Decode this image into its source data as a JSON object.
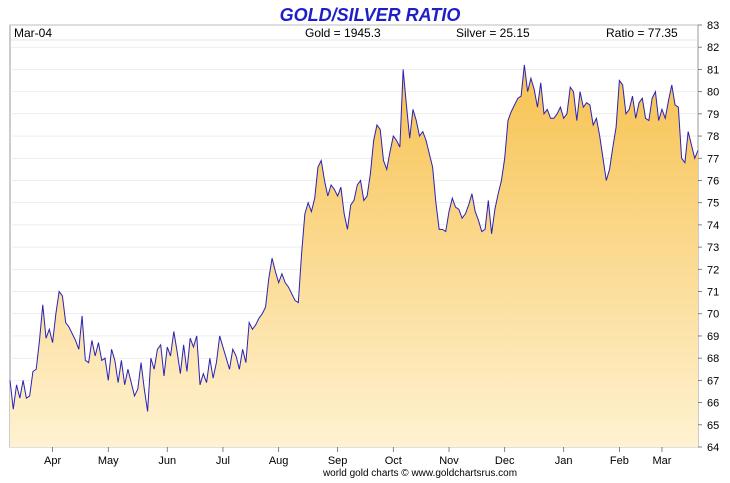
{
  "header": {
    "date": "Mar-04",
    "gold": "Gold = 1945.3",
    "silver": "Silver = 25.15",
    "ratio": "Ratio = 77.35"
  },
  "footer": {
    "credit": "world gold charts © www.goldchartsrus.com"
  },
  "colors": {
    "line": "#2a22b8",
    "fill_top": "#f7c250",
    "fill_bottom": "#fff2d2",
    "title": "#1f1fc8"
  },
  "chart_data": {
    "type": "area",
    "title": "GOLD/SILVER RATIO",
    "xlabel": "",
    "ylabel": "",
    "ylim": [
      64,
      83
    ],
    "yticks": [
      64,
      65,
      66,
      67,
      68,
      69,
      70,
      71,
      72,
      73,
      74,
      75,
      76,
      77,
      78,
      79,
      80,
      81,
      82,
      83
    ],
    "y_axis_side": "right",
    "x_ticks": [
      {
        "label": "Apr",
        "index": 13
      },
      {
        "label": "May",
        "index": 30
      },
      {
        "label": "Jun",
        "index": 48
      },
      {
        "label": "Jul",
        "index": 65
      },
      {
        "label": "Aug",
        "index": 82
      },
      {
        "label": "Sep",
        "index": 100
      },
      {
        "label": "Oct",
        "index": 117
      },
      {
        "label": "Nov",
        "index": 134
      },
      {
        "label": "Dec",
        "index": 151
      },
      {
        "label": "Jan",
        "index": 169
      },
      {
        "label": "Feb",
        "index": 186
      },
      {
        "label": "Mar",
        "index": 199
      }
    ],
    "series": [
      {
        "values": [
          67.0,
          65.7,
          66.8,
          66.2,
          67.0,
          66.2,
          66.3,
          67.4,
          67.5,
          68.8,
          70.4,
          68.9,
          69.3,
          68.7,
          70.0,
          71.0,
          70.8,
          69.6,
          69.4,
          69.1,
          68.8,
          68.4,
          69.9,
          67.9,
          67.8,
          68.8,
          68.1,
          68.7,
          67.9,
          68.0,
          67.0,
          68.4,
          67.9,
          66.9,
          67.9,
          66.8,
          67.5,
          66.9,
          66.3,
          66.6,
          67.8,
          66.6,
          65.6,
          68.0,
          67.5,
          68.4,
          68.6,
          67.2,
          68.5,
          68.1,
          69.2,
          68.3,
          67.3,
          68.6,
          67.4,
          68.9,
          68.5,
          69.0,
          66.8,
          67.3,
          66.9,
          68.0,
          67.1,
          67.8,
          69.0,
          68.5,
          68.0,
          67.5,
          68.4,
          68.1,
          67.5,
          68.4,
          67.8,
          69.6,
          69.3,
          69.5,
          69.8,
          70.0,
          70.3,
          71.6,
          72.5,
          71.9,
          71.4,
          71.8,
          71.4,
          71.2,
          70.9,
          70.6,
          70.5,
          72.7,
          74.5,
          75.0,
          74.6,
          75.2,
          76.6,
          76.9,
          76.0,
          75.3,
          75.8,
          75.6,
          75.3,
          75.7,
          74.5,
          73.8,
          74.9,
          75.1,
          75.8,
          76.0,
          75.1,
          75.3,
          76.3,
          77.8,
          78.5,
          78.3,
          76.9,
          76.5,
          77.3,
          78.0,
          77.8,
          77.5,
          81.0,
          79.4,
          77.9,
          79.2,
          78.7,
          78.0,
          78.2,
          77.8,
          77.2,
          76.6,
          75.0,
          73.8,
          73.8,
          73.7,
          74.6,
          75.2,
          74.8,
          74.7,
          74.3,
          74.5,
          74.9,
          75.4,
          74.6,
          74.2,
          73.7,
          73.8,
          75.1,
          73.6,
          74.7,
          75.4,
          76.0,
          77.0,
          78.7,
          79.1,
          79.4,
          79.7,
          79.8,
          81.2,
          80.0,
          80.6,
          80.1,
          79.3,
          80.4,
          79.0,
          79.2,
          78.8,
          78.8,
          79.0,
          79.3,
          78.8,
          79.0,
          80.2,
          80.0,
          78.7,
          80.0,
          79.3,
          79.5,
          79.4,
          78.5,
          78.8,
          78.0,
          77.0,
          76.0,
          76.5,
          77.5,
          78.4,
          80.5,
          80.3,
          79.0,
          79.2,
          79.8,
          78.8,
          79.5,
          79.7,
          78.8,
          78.7,
          79.7,
          80.0,
          78.7,
          79.2,
          78.8,
          79.6,
          80.3,
          79.4,
          79.3,
          77.0,
          76.8,
          78.2,
          77.6,
          77.0,
          77.35
        ]
      }
    ]
  }
}
